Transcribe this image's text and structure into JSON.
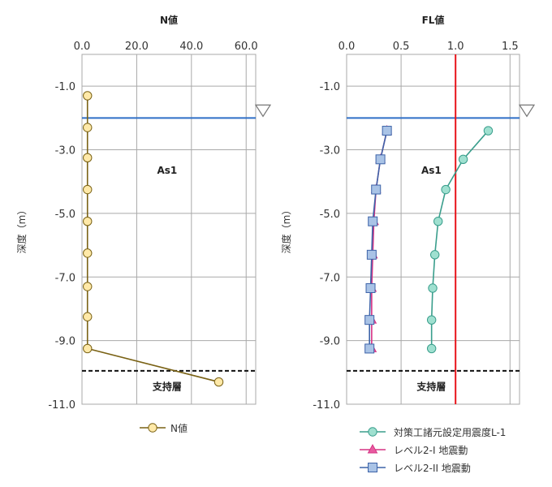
{
  "chart_data": [
    {
      "type": "line",
      "title": "N値",
      "ylabel": "深度（m）",
      "xlim": [
        0,
        60
      ],
      "ylim": [
        -11,
        0
      ],
      "xticks": [
        "0.0",
        "20.0",
        "40.0",
        "60.0"
      ],
      "yticks": [
        "-1.0",
        "-3.0",
        "-5.0",
        "-7.0",
        "-9.0",
        "-11.0"
      ],
      "water_level": -2.0,
      "bearing_layer_top": -9.95,
      "layer_label": "As1",
      "bearing_label": "支持層",
      "series": [
        {
          "name": "N値",
          "color": "#7a6215",
          "marker": "circle",
          "fill": "#ffe9a8",
          "points": [
            {
              "x": 2,
              "y": -1.3
            },
            {
              "x": 2,
              "y": -2.3
            },
            {
              "x": 2,
              "y": -3.25
            },
            {
              "x": 2,
              "y": -4.25
            },
            {
              "x": 2,
              "y": -5.25
            },
            {
              "x": 2,
              "y": -6.25
            },
            {
              "x": 2,
              "y": -7.3
            },
            {
              "x": 2,
              "y": -8.25
            },
            {
              "x": 2,
              "y": -9.25
            },
            {
              "x": 50,
              "y": -10.3
            }
          ]
        }
      ]
    },
    {
      "type": "line",
      "title": "FL値",
      "ylabel": "深度（m）",
      "xlim": [
        0,
        1.5
      ],
      "ylim": [
        -11,
        0
      ],
      "xticks": [
        "0.0",
        "0.5",
        "1.0",
        "1.5"
      ],
      "yticks": [
        "-1.0",
        "-3.0",
        "-5.0",
        "-7.0",
        "-9.0",
        "-11.0"
      ],
      "water_level": -2.0,
      "bearing_layer_top": -9.95,
      "reference_line": 1.0,
      "layer_label": "As1",
      "bearing_label": "支持層",
      "series": [
        {
          "name": "対策工諸元設定用震度L-1",
          "color": "#3a9e8c",
          "marker": "circle",
          "fill": "#9fe0d0",
          "points": [
            {
              "x": 1.3,
              "y": -2.4
            },
            {
              "x": 1.07,
              "y": -3.3
            },
            {
              "x": 0.91,
              "y": -4.25
            },
            {
              "x": 0.84,
              "y": -5.25
            },
            {
              "x": 0.81,
              "y": -6.3
            },
            {
              "x": 0.79,
              "y": -7.35
            },
            {
              "x": 0.78,
              "y": -8.35
            },
            {
              "x": 0.78,
              "y": -9.25
            }
          ]
        },
        {
          "name": "レベル2-I 地震動",
          "color": "#d63384",
          "marker": "triangle",
          "fill": "#e85aa0",
          "points": [
            {
              "x": 0.37,
              "y": -2.4
            },
            {
              "x": 0.31,
              "y": -3.3
            },
            {
              "x": 0.27,
              "y": -4.25
            },
            {
              "x": 0.25,
              "y": -5.25
            },
            {
              "x": 0.24,
              "y": -6.3
            },
            {
              "x": 0.23,
              "y": -7.35
            },
            {
              "x": 0.23,
              "y": -8.35
            },
            {
              "x": 0.23,
              "y": -9.25
            }
          ]
        },
        {
          "name": "レベル2-II 地震動",
          "color": "#3d63a8",
          "marker": "square",
          "fill": "#a9c3e6",
          "points": [
            {
              "x": 0.37,
              "y": -2.4
            },
            {
              "x": 0.31,
              "y": -3.3
            },
            {
              "x": 0.27,
              "y": -4.25
            },
            {
              "x": 0.24,
              "y": -5.25
            },
            {
              "x": 0.23,
              "y": -6.3
            },
            {
              "x": 0.22,
              "y": -7.35
            },
            {
              "x": 0.21,
              "y": -8.35
            },
            {
              "x": 0.21,
              "y": -9.25
            }
          ]
        }
      ]
    }
  ],
  "colors": {
    "grid": "#a9a9a9",
    "water_line": "#2f6fc6",
    "reference_line": "#e8141a",
    "bearing_line": "#111111",
    "water_marker_stroke": "#777777"
  }
}
